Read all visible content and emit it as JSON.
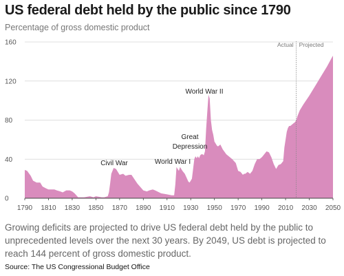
{
  "chart_data": {
    "type": "area",
    "title": "US federal debt held by the public since 1790",
    "subtitle": "Percentage of gross domestic product",
    "xlim": [
      1790,
      2050
    ],
    "ylim": [
      0,
      160
    ],
    "x_ticks": [
      "1790",
      "1810",
      "1830",
      "1850",
      "1870",
      "1890",
      "1910",
      "1930",
      "1950",
      "1970",
      "1990",
      "2010",
      "2030",
      "2050"
    ],
    "y_ticks": [
      "0",
      "40",
      "80",
      "120",
      "160"
    ],
    "grid": "horizontal",
    "color": "#d98cbd",
    "series": [
      {
        "x": [
          1790,
          1792,
          1795,
          1797,
          1800,
          1803,
          1805,
          1808,
          1810,
          1812,
          1815,
          1817,
          1820,
          1822,
          1825,
          1828,
          1830,
          1832,
          1835,
          1840,
          1845,
          1848,
          1850,
          1855,
          1857,
          1860,
          1861,
          1862,
          1863,
          1865,
          1867,
          1870,
          1873,
          1875,
          1878,
          1880,
          1885,
          1890,
          1893,
          1895,
          1898,
          1900,
          1905,
          1910,
          1914,
          1916,
          1917,
          1918,
          1919,
          1920,
          1921,
          1922,
          1923,
          1925,
          1928,
          1929,
          1930,
          1931,
          1932,
          1933,
          1934,
          1935,
          1936,
          1937,
          1938,
          1939,
          1940,
          1941,
          1942,
          1943,
          1944,
          1945,
          1946,
          1947,
          1948,
          1949,
          1950,
          1951,
          1952,
          1953,
          1955,
          1957,
          1960,
          1963,
          1965,
          1968,
          1970,
          1972,
          1974,
          1975,
          1976,
          1978,
          1980,
          1982,
          1984,
          1986,
          1988,
          1990,
          1992,
          1994,
          1996,
          1998,
          2000,
          2002,
          2004,
          2006,
          2008,
          2009,
          2010,
          2011,
          2012,
          2013,
          2014,
          2016,
          2018,
          2019,
          2020,
          2022,
          2025,
          2030,
          2035,
          2040,
          2045,
          2049,
          2050
        ],
        "values": [
          29,
          28,
          23,
          18,
          16,
          16,
          12,
          10,
          9,
          9,
          9,
          8,
          7,
          6,
          8,
          8,
          7,
          5,
          1,
          1,
          2,
          1,
          2,
          1,
          1,
          2,
          6,
          15,
          25,
          31,
          30,
          24,
          25,
          23,
          24,
          24,
          15,
          8,
          7,
          8,
          9,
          8,
          5,
          4,
          3,
          3,
          14,
          32,
          30,
          28,
          32,
          30,
          28,
          25,
          17,
          16,
          18,
          20,
          30,
          40,
          43,
          41,
          43,
          41,
          44,
          45,
          45,
          44,
          48,
          71,
          89,
          106,
          102,
          80,
          70,
          65,
          58,
          56,
          54,
          53,
          55,
          50,
          45,
          42,
          40,
          36,
          28,
          27,
          24,
          25,
          25,
          27,
          25,
          28,
          35,
          40,
          40,
          42,
          45,
          48,
          47,
          42,
          35,
          30,
          34,
          35,
          38,
          52,
          60,
          68,
          72,
          74,
          74,
          76,
          78,
          80,
          84,
          90,
          96,
          105,
          115,
          125,
          135,
          144,
          146
        ]
      }
    ],
    "annotations": [
      {
        "text": "Civil War",
        "x": 1866,
        "y": 31
      },
      {
        "text": "World War I",
        "x": 1919,
        "y": 32
      },
      {
        "text": "Great",
        "x": 1937,
        "y": 45
      },
      {
        "text": "Depression",
        "x": 1937,
        "y": 45
      },
      {
        "text": "World War II",
        "x": 1946,
        "y": 106
      }
    ],
    "divider": {
      "x": 2019,
      "left_label": "Actual",
      "right_label": "Projected"
    }
  },
  "caption": "Growing deficits are projected to drive US federal debt held by the public to unprecedented levels over the next 30 years. By 2049, US debt is projected to reach 144 percent of gross domestic product.",
  "source": "Source: The US Congressional Budget Office"
}
